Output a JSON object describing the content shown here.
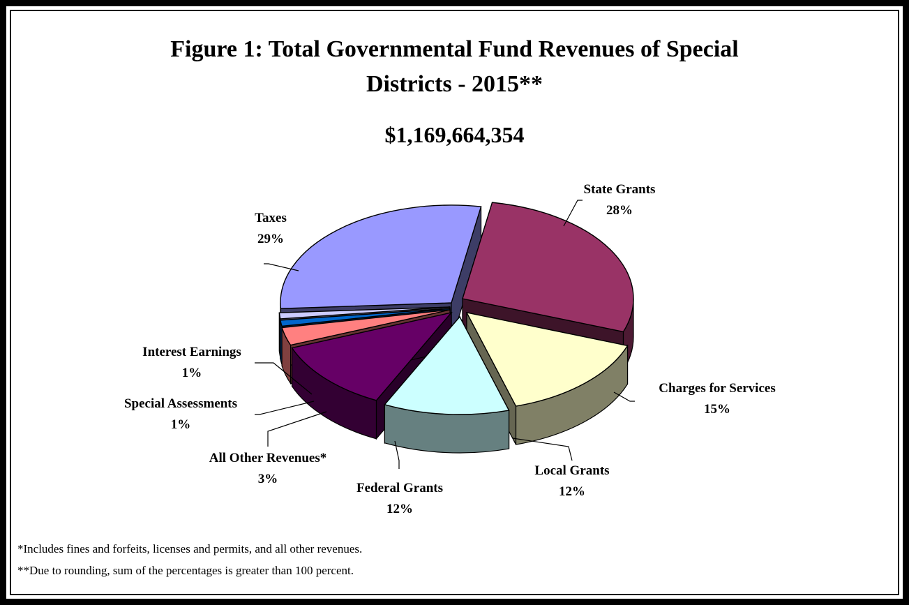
{
  "chart_data": {
    "type": "pie",
    "title_line1": "Figure 1:  Total Governmental Fund Revenues of Special",
    "title_line2": "Districts - 2015**",
    "subtitle": "$1,169,664,354",
    "slices": [
      {
        "name": "State Grants",
        "pct_label": "28%",
        "value": 28,
        "color": "#993366"
      },
      {
        "name": "Charges for Services",
        "pct_label": "15%",
        "value": 15,
        "color": "#FFFFCC"
      },
      {
        "name": "Local Grants",
        "pct_label": "12%",
        "value": 12,
        "color": "#CCFFFF"
      },
      {
        "name": "Federal Grants",
        "pct_label": "12%",
        "value": 12,
        "color": "#660066"
      },
      {
        "name": "All Other Revenues*",
        "pct_label": "3%",
        "value": 3,
        "color": "#FF8080"
      },
      {
        "name": "Special Assessments",
        "pct_label": "1%",
        "value": 1,
        "color": "#0066CC"
      },
      {
        "name": "Interest Earnings",
        "pct_label": "1%",
        "value": 1,
        "color": "#CCCCFF"
      },
      {
        "name": "Taxes",
        "pct_label": "29%",
        "value": 29,
        "color": "#9999FF"
      }
    ],
    "footnotes": [
      "*Includes fines and forfeits, licenses and permits, and all other revenues.",
      "**Due to rounding, sum of the percentages is greater than 100 percent."
    ]
  }
}
